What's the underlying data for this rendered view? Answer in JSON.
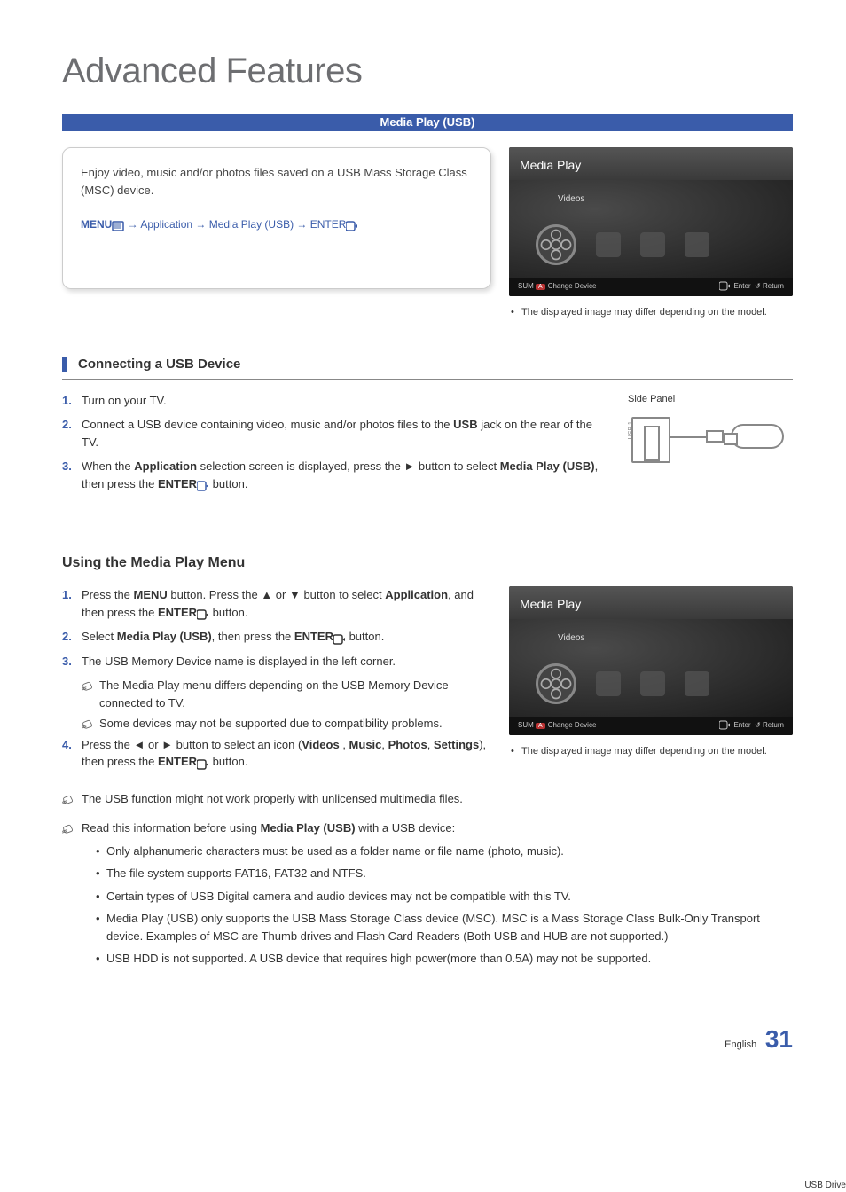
{
  "page": {
    "title": "Advanced Features",
    "band_title": "Media Play (USB)"
  },
  "intro": {
    "text": "Enjoy video, music and/or photos files saved on a USB Mass Storage Class (MSC) device.",
    "menu_path_prefix": "MENU",
    "menu_path_rest": " → Application → Media Play (USB) → ENTER"
  },
  "tv": {
    "header": "Media Play",
    "label": "Videos",
    "footer_left_sum": "SUM",
    "footer_left_badge": "A",
    "footer_left_text": "Change Device",
    "footer_right_enter": "Enter",
    "footer_right_return": "Return",
    "caption": "The displayed image may differ depending on the model."
  },
  "connecting": {
    "heading": "Connecting a USB Device",
    "steps": [
      {
        "num": "1.",
        "html": "Turn on your TV."
      },
      {
        "num": "2.",
        "html": "Connect a USB device containing video, music and/or photos files to the <b>USB</b> jack on the rear of the TV."
      },
      {
        "num": "3.",
        "html": "When the <b>Application</b> selection screen is displayed, press the ► button to select <b>Media Play (USB)</b>, then press the <b>ENTER</b><span class='icon-inline'><svg viewBox='0 0 14 12'><rect x='0' y='1' width='10' height='10' rx='2' fill='none' stroke='#3a5caa' stroke-width='1.5'/><path d='M10 6 L13 4 L13 8 Z' fill='#3a5caa'/></svg></span> button."
      }
    ],
    "side_panel_label": "Side Panel",
    "usb_drive_label": "USB Drive",
    "usb_port_text": "USB 1"
  },
  "using": {
    "heading": "Using the Media Play Menu",
    "steps": [
      {
        "num": "1.",
        "html": "Press the <b>MENU</b> button. Press the ▲ or ▼ button to select <b>Application</b>, and then press the <b>ENTER</b><span class='icon-inline'><svg viewBox='0 0 14 12'><rect x='0' y='1' width='10' height='10' rx='2' fill='none' stroke='#333' stroke-width='1.5'/><path d='M10 6 L13 4 L13 8 Z' fill='#333'/></svg></span> button."
      },
      {
        "num": "2.",
        "html": "Select <b>Media Play (USB)</b>, then press the <b>ENTER</b><span class='icon-inline'><svg viewBox='0 0 14 12'><rect x='0' y='1' width='10' height='10' rx='2' fill='none' stroke='#333' stroke-width='1.5'/><path d='M10 6 L13 4 L13 8 Z' fill='#333'/></svg></span> button."
      },
      {
        "num": "3.",
        "html": "The USB Memory Device name is displayed in the left corner."
      },
      {
        "num": "4.",
        "html": "Press the ◄ or ► button to select an icon (<b>Videos </b>, <b>Music</b>, <b>Photos</b>, <b>Settings</b>), then press the <b>ENTER</b><span class='icon-inline'><svg viewBox='0 0 14 12'><rect x='0' y='1' width='10' height='10' rx='2' fill='none' stroke='#333' stroke-width='1.5'/><path d='M10 6 L13 4 L13 8 Z' fill='#333'/></svg></span> button."
      }
    ],
    "notes_after_3": [
      "The Media Play menu differs depending on the USB Memory Device connected to TV.",
      "Some devices may not be supported due to compatibility problems."
    ]
  },
  "global_notes": [
    {
      "text": "The USB function might not work properly with unlicensed multimedia files."
    },
    {
      "text_html": "Read this information before using <b>Media Play (USB)</b> with a USB device:"
    }
  ],
  "bullets": [
    "Only alphanumeric characters must be used as a folder name or file name (photo, music).",
    "The file system supports FAT16, FAT32 and NTFS.",
    "Certain types of USB Digital camera and audio devices may not be compatible with this TV.",
    "Media Play (USB) only supports the USB Mass Storage Class device (MSC). MSC is a Mass Storage Class Bulk-Only Transport device. Examples of MSC are Thumb drives and Flash Card Readers (Both USB and HUB are not supported.)",
    "USB HDD is not supported. A USB device that requires high power(more than 0.5A) may not be supported."
  ],
  "footer": {
    "language": "English",
    "page_number": "31"
  },
  "colors": {
    "accent": "#3a5caa",
    "text": "#333333",
    "title_gray": "#6d6e71"
  }
}
